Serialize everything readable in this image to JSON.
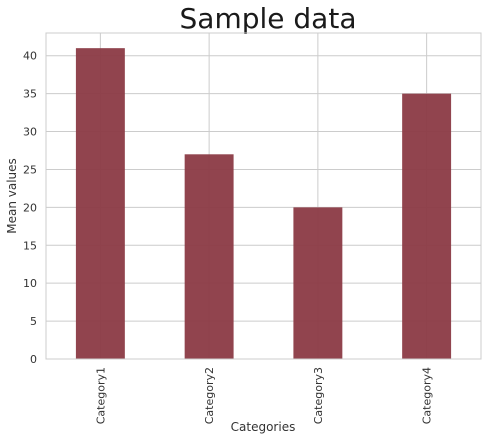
{
  "chart_data": {
    "type": "bar",
    "title": "Sample data",
    "xlabel": "Categories",
    "ylabel": "Mean values",
    "categories": [
      "Category1",
      "Category2",
      "Category3",
      "Category4"
    ],
    "values": [
      41,
      27,
      20,
      35
    ],
    "ylim": [
      0,
      43
    ],
    "yticks": [
      0,
      5,
      10,
      15,
      20,
      25,
      30,
      35,
      40
    ],
    "grid": true,
    "bar_color": "#8b3a44"
  }
}
